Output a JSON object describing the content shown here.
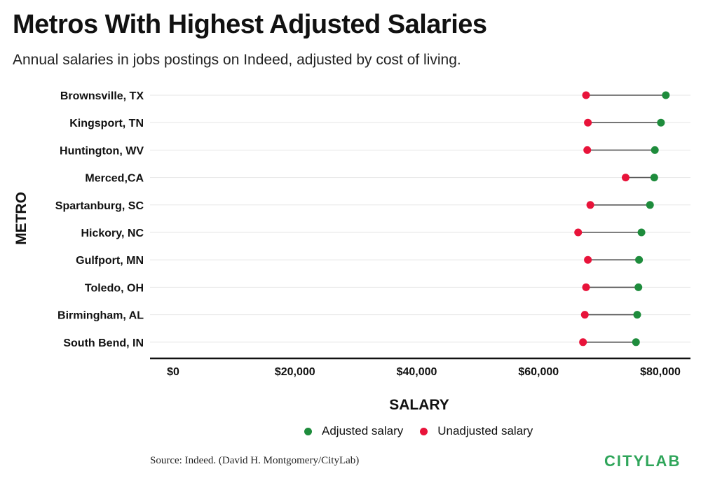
{
  "title": "Metros With Highest Adjusted Salaries",
  "subtitle": "Annual salaries in jobs postings on Indeed, adjusted by cost of living.",
  "source": "Source: Indeed. (David H. Montgomery/CityLab)",
  "logo_text": "CITYLAB",
  "colors": {
    "adjusted": "#1e8c3c",
    "unadjusted": "#e8133a",
    "connector": "#555555",
    "grid": "#e6e6e6",
    "logo": "#2fa55a"
  },
  "legend": {
    "adjusted_label": "Adjusted salary",
    "unadjusted_label": "Unadjusted salary"
  },
  "chart_data": {
    "type": "dumbbell",
    "xlabel": "SALARY",
    "ylabel": "METRO",
    "xlim": [
      0,
      85000
    ],
    "xticks": [
      0,
      20000,
      40000,
      60000,
      80000
    ],
    "xtick_labels": [
      "$0",
      "$20,000",
      "$40,000",
      "$60,000",
      "$80,000"
    ],
    "categories": [
      "Brownsville, TX",
      "Kingsport, TN",
      "Huntington, WV",
      "Merced,CA",
      "Spartanburg, SC",
      "Hickory, NC",
      "Gulfport, MN",
      "Toledo, OH",
      "Birmingham, AL",
      "South Bend, IN"
    ],
    "series": [
      {
        "name": "Adjusted salary",
        "values": [
          80900,
          80100,
          79100,
          79000,
          78300,
          76900,
          76500,
          76400,
          76200,
          76000
        ]
      },
      {
        "name": "Unadjusted salary",
        "values": [
          67800,
          68100,
          68000,
          74300,
          68500,
          66500,
          68100,
          67800,
          67600,
          67300
        ]
      }
    ],
    "grid": true,
    "legend_position": "bottom"
  }
}
